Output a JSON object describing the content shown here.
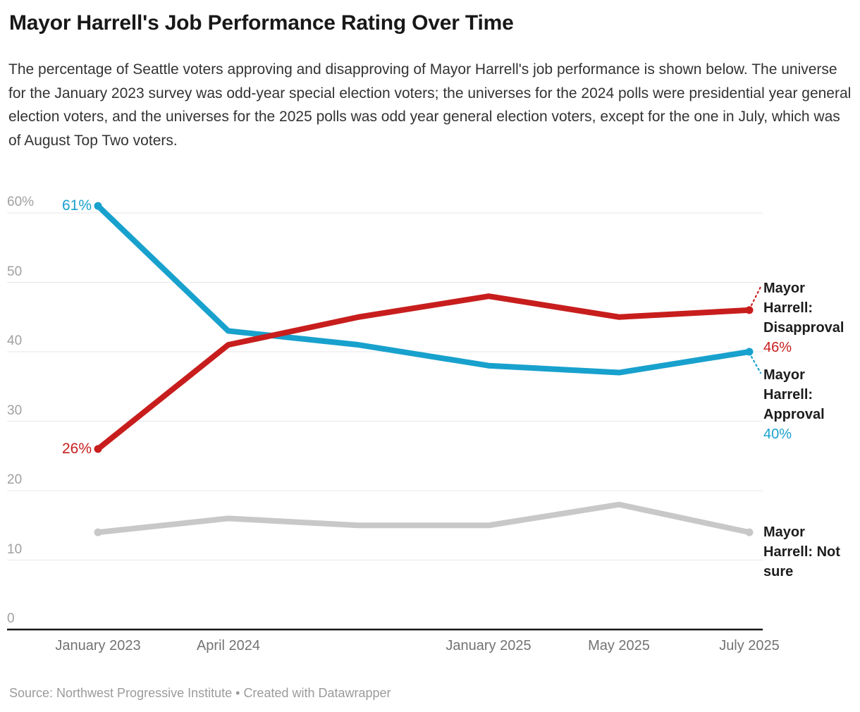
{
  "header": {
    "title": "Mayor Harrell's Job Performance Rating Over Time",
    "description": "The percentage of Seattle voters approving and disapproving of Mayor Harrell's job performance is shown below. The universe for the January 2023 survey was odd-year special election voters; the universes for the 2024 polls were presidential year general election voters, and the universes for the 2025 polls was odd year general election voters, except for the one in July, which was of August Top Two voters."
  },
  "chart_data": {
    "type": "line",
    "point_count": 6,
    "x_axis": {
      "tick_labels": [
        {
          "point_index": 0,
          "label": "January 2023"
        },
        {
          "point_index": 1,
          "label": "April 2024"
        },
        {
          "point_index": 3,
          "label": "January 2025"
        },
        {
          "point_index": 4,
          "label": "May 2025"
        },
        {
          "point_index": 5,
          "label": "July 2025"
        }
      ]
    },
    "y_axis": {
      "range": [
        0,
        60
      ],
      "gridlines": true,
      "ticks": [
        {
          "value": 60,
          "label": "60%"
        },
        {
          "value": 50,
          "label": "50"
        },
        {
          "value": 40,
          "label": "40"
        },
        {
          "value": 30,
          "label": "30"
        },
        {
          "value": 20,
          "label": "20"
        },
        {
          "value": 10,
          "label": "10"
        },
        {
          "value": 0,
          "label": "0"
        }
      ]
    },
    "series": [
      {
        "name": "Mayor Harrell: Not sure",
        "color": "#c8c8c8",
        "values": [
          14,
          16,
          15,
          15,
          18,
          14
        ]
      },
      {
        "name": "Mayor Harrell: Approval",
        "color": "#18a1cd",
        "values": [
          61,
          43,
          41,
          38,
          37,
          40
        ]
      },
      {
        "name": "Mayor Harrell: Disapproval",
        "color": "#c71e1d",
        "values": [
          26,
          41,
          45,
          48,
          45,
          46
        ]
      }
    ]
  },
  "annotations": {
    "approval_start": {
      "text": "61%",
      "color": "#18a1cd"
    },
    "disapproval_start": {
      "text": "26%",
      "color": "#c71e1d"
    },
    "disapproval_label": {
      "line1": "Mayor",
      "line2": "Harrell:",
      "line3": "Disapproval",
      "value": "46%",
      "color": "#c71e1d"
    },
    "approval_label": {
      "line1": "Mayor",
      "line2": "Harrell:",
      "line3": "Approval",
      "value": "40%",
      "color": "#18a1cd"
    },
    "not_sure_label": {
      "line1": "Mayor",
      "line2": "Harrell: Not",
      "line3": "sure"
    }
  },
  "footer": {
    "source": "Source: Northwest Progressive Institute • Created with Datawrapper"
  }
}
